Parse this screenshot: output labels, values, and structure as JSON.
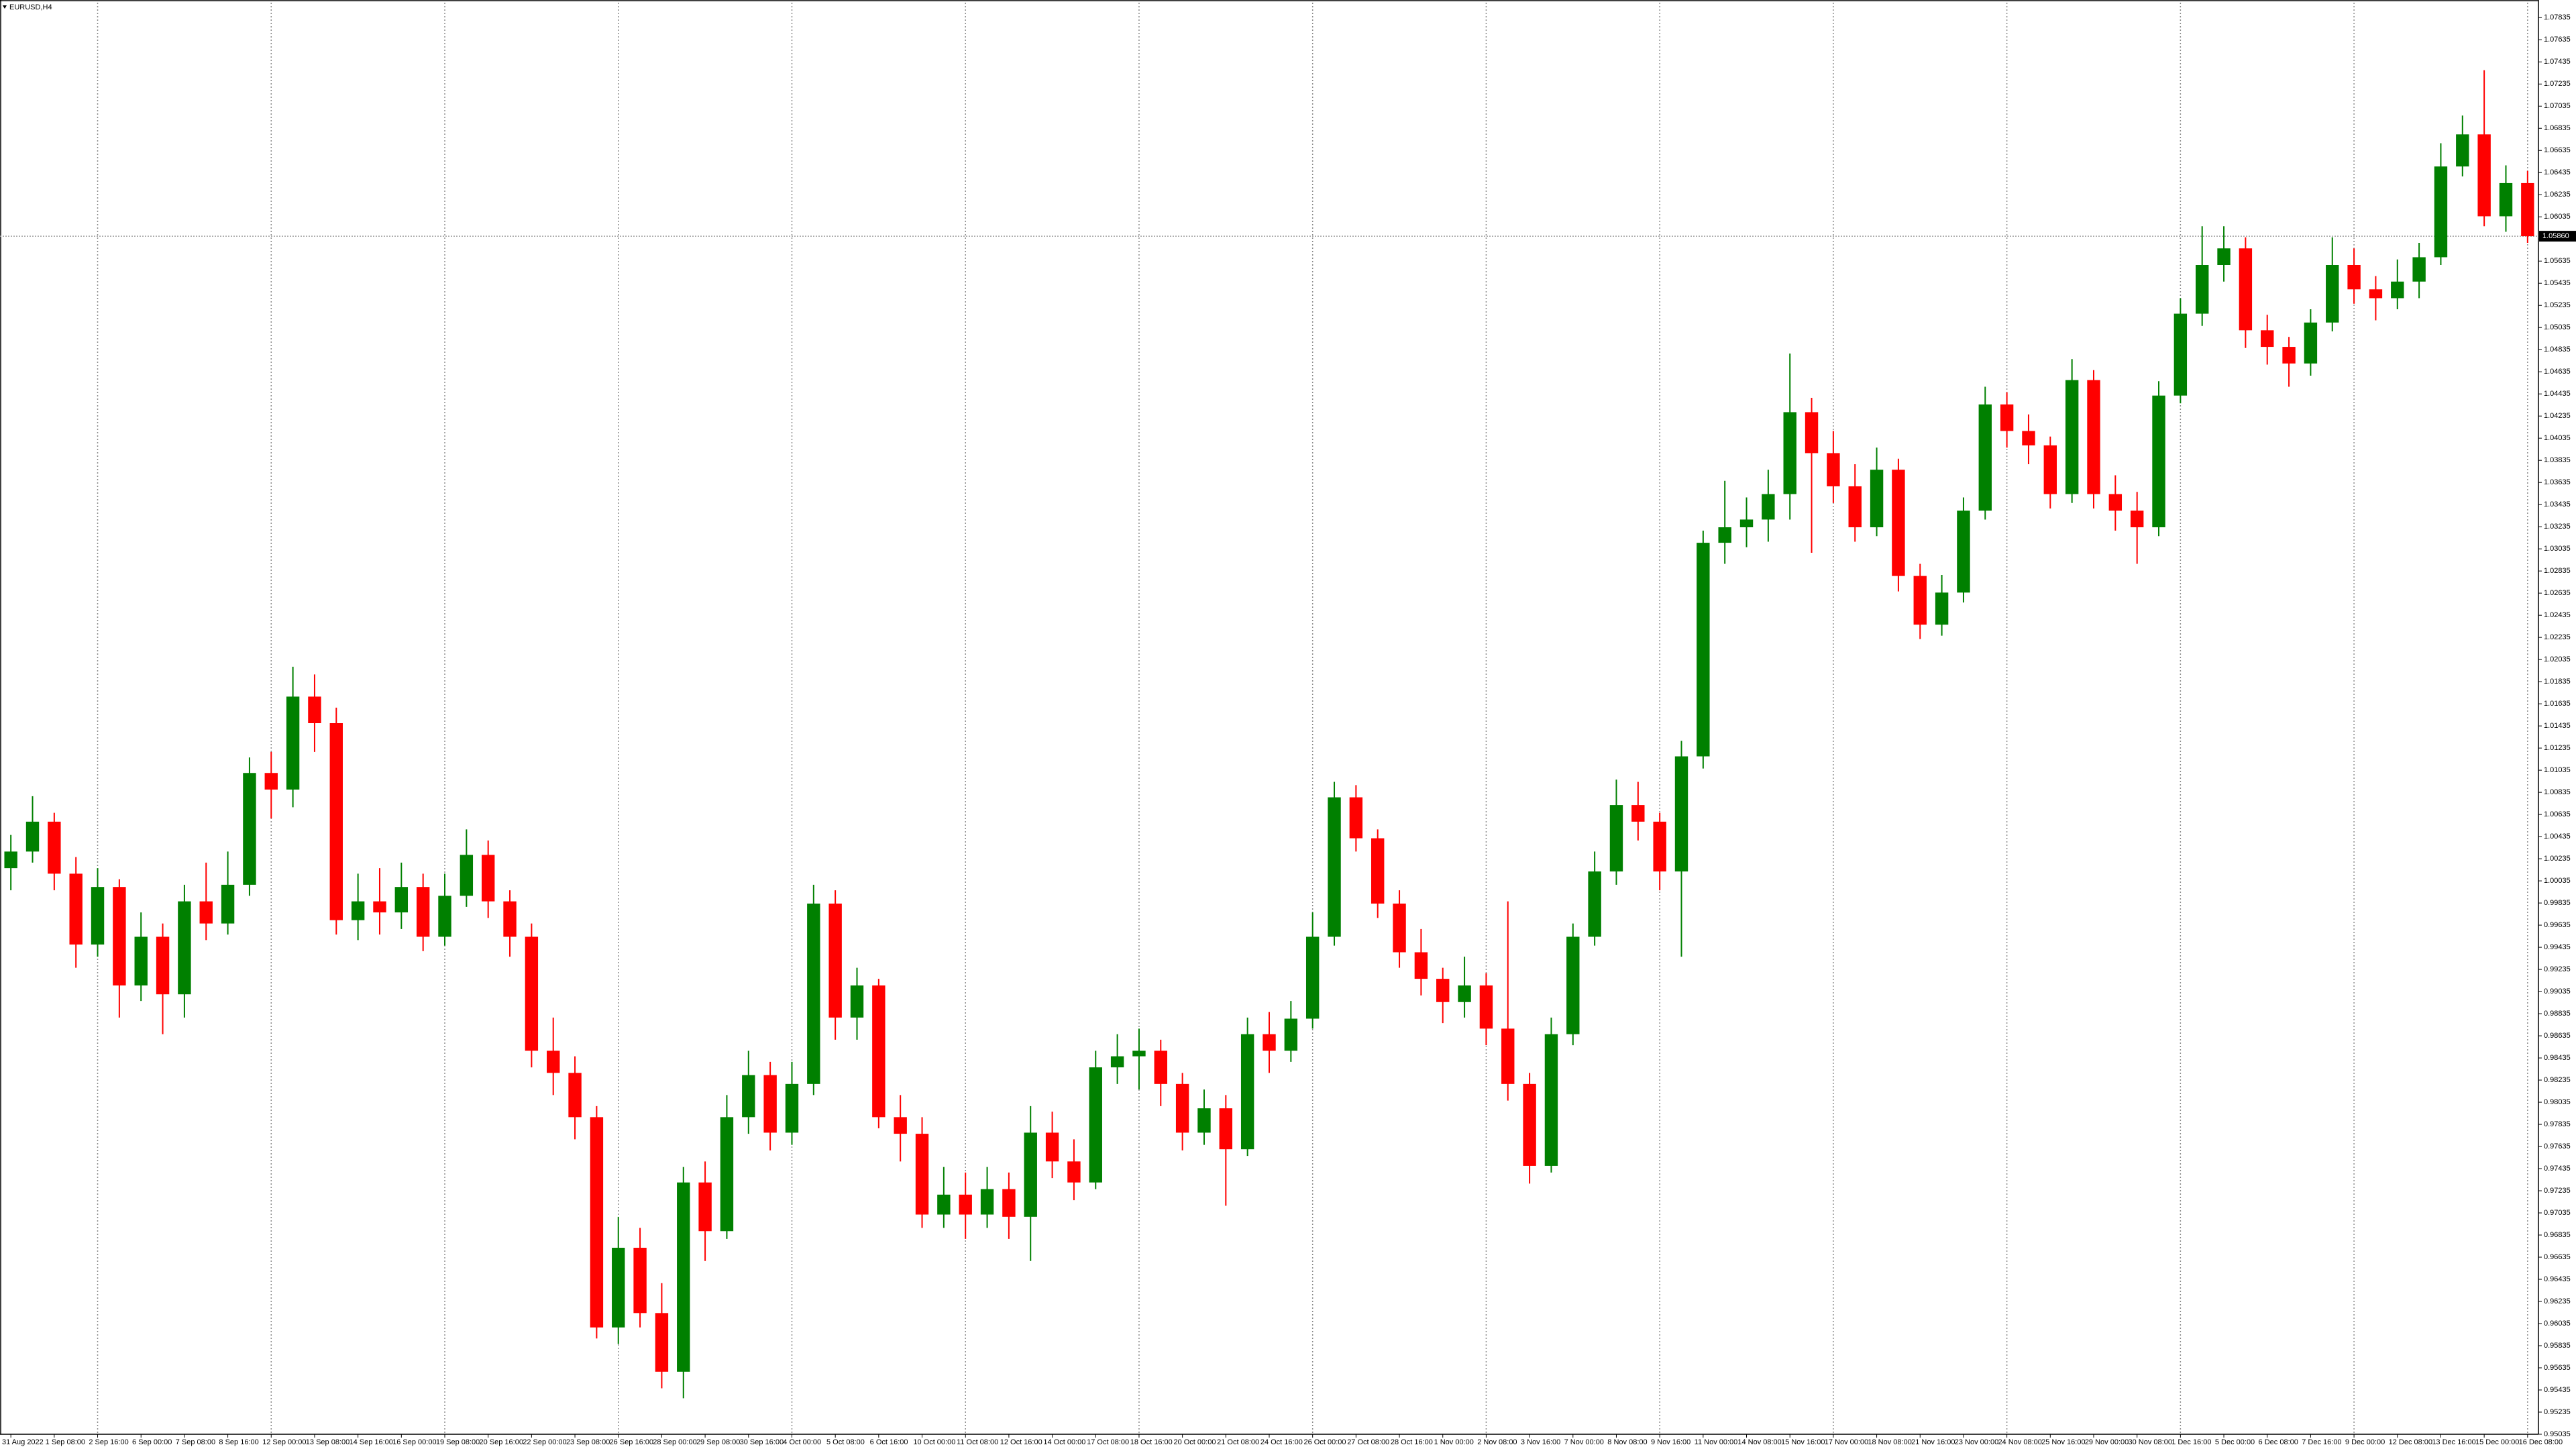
{
  "chart_data": {
    "type": "candlestick",
    "title": "EURUSD,H4",
    "categories": [
      "31 Aug 2022",
      null,
      "1 Sep 08:00",
      null,
      "2 Sep 16:00",
      null,
      "6 Sep 00:00",
      null,
      "7 Sep 08:00",
      null,
      "8 Sep 16:00",
      null,
      "12 Sep 00:00",
      null,
      "13 Sep 08:00",
      null,
      "14 Sep 16:00",
      null,
      "16 Sep 00:00",
      null,
      "19 Sep 08:00",
      null,
      "20 Sep 16:00",
      null,
      "22 Sep 00:00",
      null,
      "23 Sep 08:00",
      null,
      "26 Sep 16:00",
      null,
      "28 Sep 00:00",
      null,
      "29 Sep 08:00",
      null,
      "30 Sep 16:00",
      null,
      "4 Oct 00:00",
      null,
      "5 Oct 08:00",
      null,
      "6 Oct 16:00",
      null,
      "10 Oct 00:00",
      null,
      "11 Oct 08:00",
      null,
      "12 Oct 16:00",
      null,
      "14 Oct 00:00",
      null,
      "17 Oct 08:00",
      null,
      "18 Oct 16:00",
      null,
      "20 Oct 00:00",
      null,
      "21 Oct 08:00",
      null,
      "24 Oct 16:00",
      null,
      "26 Oct 00:00",
      null,
      "27 Oct 08:00",
      null,
      "28 Oct 16:00",
      null,
      "1 Nov 00:00",
      null,
      "2 Nov 08:00",
      null,
      "3 Nov 16:00",
      null,
      "7 Nov 00:00",
      null,
      "8 Nov 08:00",
      null,
      "9 Nov 16:00",
      null,
      "11 Nov 00:00",
      null,
      "14 Nov 08:00",
      null,
      "15 Nov 16:00",
      null,
      "17 Nov 00:00",
      null,
      "18 Nov 08:00",
      null,
      "21 Nov 16:00",
      null,
      "23 Nov 00:00",
      null,
      "24 Nov 08:00",
      null,
      "25 Nov 16:00",
      null,
      "29 Nov 00:00",
      null,
      "30 Nov 08:00",
      null,
      "1 Dec 16:00",
      null,
      "5 Dec 00:00",
      null,
      "6 Dec 08:00",
      null,
      "7 Dec 16:00",
      null,
      "9 Dec 00:00",
      null,
      "12 Dec 08:00",
      null,
      "13 Dec 16:00",
      null,
      "15 Dec 00:00",
      null,
      "16 Dec 08:00"
    ],
    "open": [
      1.0015,
      1.003,
      1.0057,
      1.001,
      0.9946,
      0.9998,
      0.9909,
      0.9953,
      0.9901,
      0.9985,
      0.9965,
      1.0,
      1.0101,
      1.0086,
      1.017,
      1.0146,
      0.9968,
      0.9985,
      0.9975,
      0.9998,
      0.9953,
      0.999,
      1.0027,
      0.9985,
      0.9953,
      0.985,
      0.983,
      0.979,
      0.96,
      0.9672,
      0.9613,
      0.956,
      0.9731,
      0.9687,
      0.979,
      0.9828,
      0.9776,
      0.982,
      0.9983,
      0.988,
      0.9909,
      0.979,
      0.9775,
      0.9702,
      0.972,
      0.9702,
      0.9725,
      0.97,
      0.9776,
      0.975,
      0.9731,
      0.9835,
      0.9845,
      0.985,
      0.982,
      0.9776,
      0.9798,
      0.9761,
      0.9865,
      0.985,
      0.9879,
      0.9953,
      1.0079,
      1.0042,
      0.9983,
      0.9939,
      0.9915,
      0.9894,
      0.9909,
      0.987,
      0.982,
      0.9746,
      0.9865,
      0.9953,
      1.0012,
      1.0072,
      1.0057,
      1.0012,
      1.0116,
      1.0309,
      1.0323,
      1.033,
      1.0353,
      1.0427,
      1.039,
      1.036,
      1.0323,
      1.0375,
      1.0279,
      1.0235,
      1.0264,
      1.0338,
      1.0434,
      1.041,
      1.0397,
      1.0353,
      1.0456,
      1.0353,
      1.0338,
      1.0323,
      1.0442,
      1.0516,
      1.056,
      1.0575,
      1.0501,
      1.0486,
      1.0471,
      1.0508,
      1.056,
      1.0538,
      1.053,
      1.0545,
      1.0567,
      1.0649,
      1.0678,
      1.0604,
      1.0634
    ],
    "high": [
      1.0045,
      1.008,
      1.0065,
      1.0025,
      1.0015,
      1.0005,
      0.9975,
      0.9965,
      1.0,
      1.002,
      1.003,
      1.0115,
      1.012,
      1.0197,
      1.019,
      1.016,
      1.001,
      1.0015,
      1.002,
      1.001,
      1.001,
      1.005,
      1.004,
      0.9995,
      0.9965,
      0.988,
      0.9845,
      0.98,
      0.97,
      0.969,
      0.964,
      0.9745,
      0.975,
      0.981,
      0.985,
      0.984,
      0.984,
      1.0,
      0.9995,
      0.9925,
      0.9915,
      0.981,
      0.979,
      0.9745,
      0.974,
      0.9745,
      0.974,
      0.98,
      0.9795,
      0.977,
      0.985,
      0.9865,
      0.987,
      0.986,
      0.983,
      0.9815,
      0.981,
      0.988,
      0.9885,
      0.9895,
      0.9975,
      1.0093,
      1.009,
      1.005,
      0.9995,
      0.996,
      0.9925,
      0.9935,
      0.992,
      0.9985,
      0.983,
      0.988,
      0.9965,
      1.003,
      1.0095,
      1.0093,
      1.0065,
      1.013,
      1.032,
      1.0365,
      1.035,
      1.0375,
      1.048,
      1.044,
      1.041,
      1.038,
      1.0395,
      1.0385,
      1.029,
      1.028,
      1.035,
      1.045,
      1.0445,
      1.0425,
      1.0405,
      1.0475,
      1.0465,
      1.037,
      1.0355,
      1.0455,
      1.053,
      1.0595,
      1.0595,
      1.0585,
      1.0515,
      1.0495,
      1.052,
      1.0585,
      1.0575,
      1.055,
      1.0565,
      1.058,
      1.067,
      1.0695,
      1.0736,
      1.065,
      1.0645
    ],
    "low": [
      0.9995,
      1.002,
      0.9995,
      0.9925,
      0.9935,
      0.988,
      0.9895,
      0.9865,
      0.988,
      0.995,
      0.9955,
      0.999,
      1.006,
      1.007,
      1.012,
      0.9955,
      0.995,
      0.9955,
      0.996,
      0.994,
      0.9945,
      0.998,
      0.997,
      0.9935,
      0.9835,
      0.981,
      0.977,
      0.959,
      0.9585,
      0.96,
      0.9545,
      0.9536,
      0.966,
      0.968,
      0.9775,
      0.976,
      0.9765,
      0.981,
      0.986,
      0.986,
      0.978,
      0.975,
      0.969,
      0.969,
      0.968,
      0.969,
      0.968,
      0.966,
      0.9735,
      0.9715,
      0.9725,
      0.982,
      0.9815,
      0.98,
      0.976,
      0.9765,
      0.971,
      0.9755,
      0.983,
      0.984,
      0.987,
      0.9945,
      1.003,
      0.997,
      0.9925,
      0.99,
      0.9875,
      0.988,
      0.9855,
      0.9805,
      0.973,
      0.974,
      0.9855,
      0.9945,
      1.0,
      1.004,
      0.9995,
      0.9935,
      1.0105,
      1.029,
      1.0305,
      1.031,
      1.033,
      1.03,
      1.0345,
      1.031,
      1.0315,
      1.0265,
      1.0222,
      1.0225,
      1.0255,
      1.033,
      1.0395,
      1.038,
      1.034,
      1.0345,
      1.034,
      1.032,
      1.029,
      1.0315,
      1.0435,
      1.0505,
      1.0545,
      1.0485,
      1.047,
      1.045,
      1.046,
      1.05,
      1.0525,
      1.051,
      1.052,
      1.053,
      1.056,
      1.064,
      1.0595,
      1.059,
      1.058
    ],
    "close": [
      1.003,
      1.0057,
      1.001,
      0.9946,
      0.9998,
      0.9909,
      0.9953,
      0.9901,
      0.9985,
      0.9965,
      1.0,
      1.0101,
      1.0086,
      1.017,
      1.0146,
      0.9968,
      0.9985,
      0.9975,
      0.9998,
      0.9953,
      0.999,
      1.0027,
      0.9985,
      0.9953,
      0.985,
      0.983,
      0.979,
      0.96,
      0.9672,
      0.9613,
      0.956,
      0.9731,
      0.9687,
      0.979,
      0.9828,
      0.9776,
      0.982,
      0.9983,
      0.988,
      0.9909,
      0.979,
      0.9775,
      0.9702,
      0.972,
      0.9702,
      0.9725,
      0.97,
      0.9776,
      0.975,
      0.9731,
      0.9835,
      0.9845,
      0.985,
      0.982,
      0.9776,
      0.9798,
      0.9761,
      0.9865,
      0.985,
      0.9879,
      0.9953,
      1.0079,
      1.0042,
      0.9983,
      0.9939,
      0.9915,
      0.9894,
      0.9909,
      0.987,
      0.982,
      0.9746,
      0.9865,
      0.9953,
      1.0012,
      1.0072,
      1.0057,
      1.0012,
      1.0116,
      1.0309,
      1.0323,
      1.033,
      1.0353,
      1.0427,
      1.039,
      1.036,
      1.0323,
      1.0375,
      1.0279,
      1.0235,
      1.0264,
      1.0338,
      1.0434,
      1.041,
      1.0397,
      1.0353,
      1.0456,
      1.0353,
      1.0338,
      1.0323,
      1.0442,
      1.0516,
      1.056,
      1.0575,
      1.0501,
      1.0486,
      1.0471,
      1.0508,
      1.056,
      1.0538,
      1.053,
      1.0545,
      1.0567,
      1.0649,
      1.0678,
      1.0604,
      1.0634,
      1.0586
    ],
    "up_color": "#008000",
    "down_color": "#ff0000",
    "ylim": [
      0.95035,
      1.0797
    ],
    "yticks": [
      1.07835,
      1.07635,
      1.07435,
      1.07235,
      1.07035,
      1.06835,
      1.06635,
      1.06435,
      1.06235,
      1.06035,
      1.05835,
      1.05635,
      1.05435,
      1.05235,
      1.05035,
      1.04835,
      1.04635,
      1.04435,
      1.04235,
      1.04035,
      1.03835,
      1.03635,
      1.03435,
      1.03235,
      1.03035,
      1.02835,
      1.02635,
      1.02435,
      1.02235,
      1.02035,
      1.01835,
      1.01635,
      1.01435,
      1.01235,
      1.01035,
      1.00835,
      1.00635,
      1.00435,
      1.00235,
      1.00035,
      0.99835,
      0.99635,
      0.99435,
      0.99235,
      0.99035,
      0.98835,
      0.98635,
      0.98435,
      0.98235,
      0.98035,
      0.97835,
      0.97635,
      0.97435,
      0.97235,
      0.97035,
      0.96835,
      0.96635,
      0.96435,
      0.96235,
      0.96035,
      0.95835,
      0.95635,
      0.95435,
      0.95235,
      0.95035
    ],
    "bid": {
      "value": 1.0586,
      "label": "1.05860"
    },
    "grid": true
  }
}
